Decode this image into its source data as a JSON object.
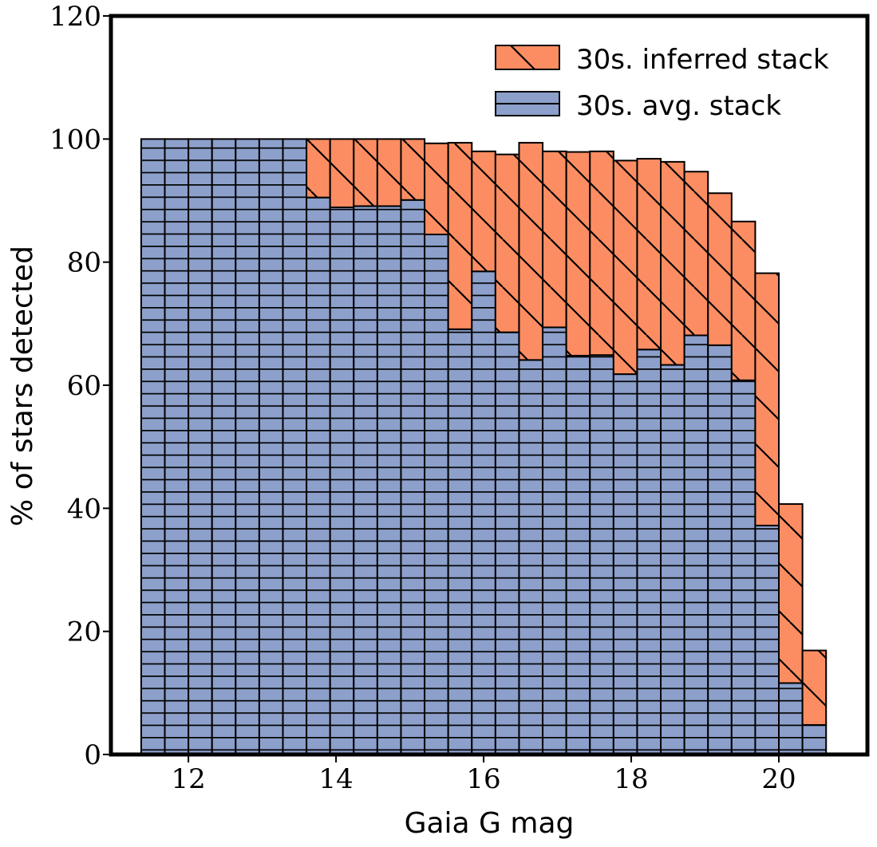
{
  "chart_data": {
    "type": "bar",
    "stacked": true,
    "xlabel": "Gaia G mag",
    "ylabel": "% of stars detected",
    "xlim": [
      10.95,
      21.2
    ],
    "ylim": [
      0,
      120
    ],
    "bin_width": 0.32,
    "x_ticks": [
      12,
      14,
      16,
      18,
      20
    ],
    "y_ticks": [
      0,
      20,
      40,
      60,
      80,
      100,
      120
    ],
    "x": [
      11.52,
      11.84,
      12.16,
      12.48,
      12.8,
      13.12,
      13.44,
      13.76,
      14.08,
      14.4,
      14.72,
      15.04,
      15.36,
      15.68,
      16.0,
      16.32,
      16.64,
      16.96,
      17.28,
      17.6,
      17.92,
      18.24,
      18.56,
      18.88,
      19.2,
      19.52,
      19.84,
      20.16,
      20.48
    ],
    "series": [
      {
        "name": "30s. avg. stack",
        "color": "#8da0cb",
        "hatch": "horizontal",
        "values": [
          100,
          100,
          100,
          100,
          100,
          100,
          100,
          90.5,
          88.9,
          89.1,
          89.1,
          90.1,
          84.5,
          69.1,
          78.5,
          68.6,
          64.1,
          69.4,
          64.8,
          64.9,
          61.8,
          65.8,
          63.3,
          68.1,
          66.5,
          60.8,
          37.2,
          11.6,
          4.8
        ]
      },
      {
        "name": "30s. inferred stack",
        "color": "#fc8d62",
        "hatch": "diagonal",
        "values": [
          0,
          0,
          0,
          0,
          0,
          0,
          0,
          9.5,
          11.1,
          10.9,
          10.9,
          9.9,
          14.8,
          30.3,
          19.5,
          28.9,
          35.3,
          28.6,
          33.1,
          33.1,
          34.7,
          31.0,
          33.0,
          26.6,
          24.7,
          25.8,
          41.0,
          29.1,
          12.1
        ]
      }
    ],
    "legend_position": "top-right",
    "grid": false
  }
}
